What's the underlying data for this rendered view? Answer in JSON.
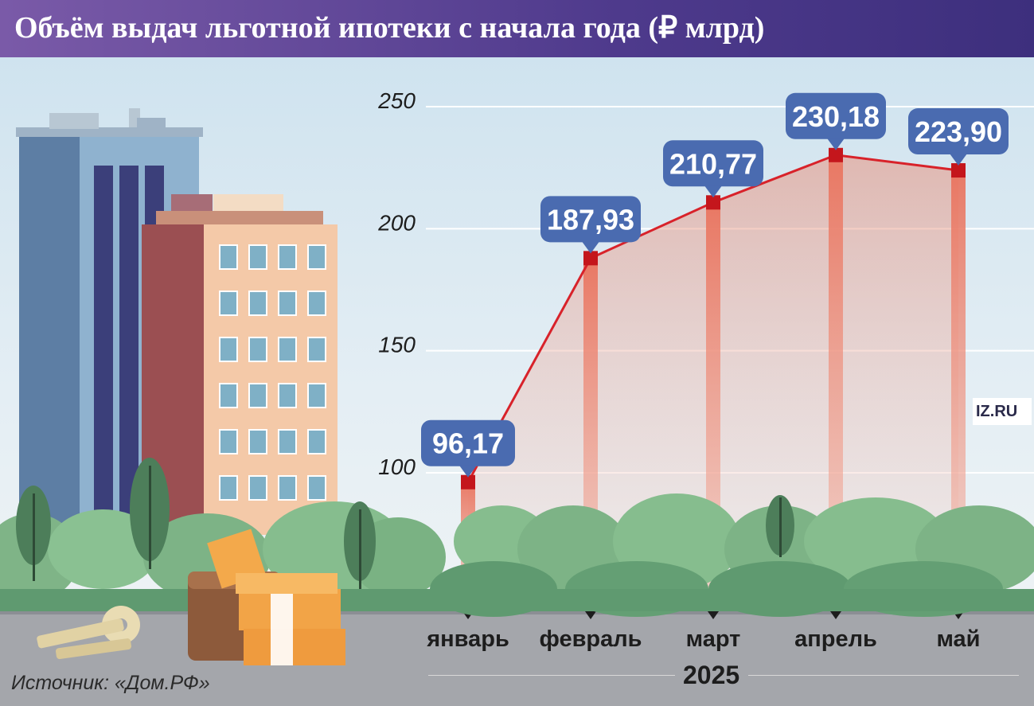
{
  "title": "Объём выдач льготной ипотеки с начала года (₽ млрд)",
  "source": "Источник: «Дом.РФ»",
  "logo": "IZ.RU",
  "colors": {
    "line": "#d8222a",
    "marker": "#c4161c",
    "callout": "#4a6bb0",
    "title_bar": "#4e3a8c"
  },
  "chart_data": {
    "type": "line",
    "title": "Объём выдач льготной ипотеки с начала года (₽ млрд)",
    "xlabel": "2025",
    "ylabel": "",
    "categories": [
      "январь",
      "февраль",
      "март",
      "апрель",
      "май"
    ],
    "values": [
      96.17,
      187.93,
      210.77,
      230.18,
      223.9
    ],
    "value_labels": [
      "96,17",
      "187,93",
      "210,77",
      "230,18",
      "223,90"
    ],
    "yticks": [
      100,
      150,
      200,
      250
    ],
    "ylim": [
      75,
      262
    ],
    "grid": true,
    "legend": "none"
  }
}
